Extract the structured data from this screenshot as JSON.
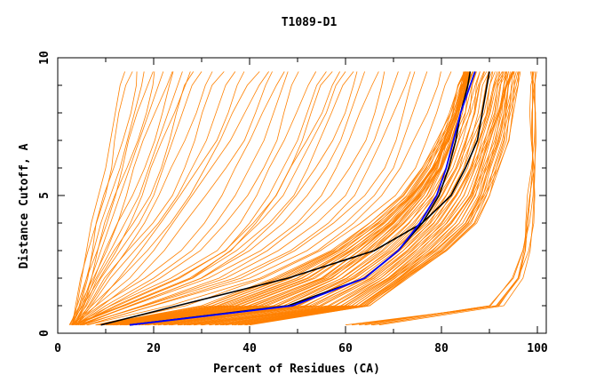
{
  "chart_data": {
    "type": "line",
    "title": "T1089-D1",
    "xlabel": "Percent of Residues (CA)",
    "ylabel": "Distance Cutoff, A",
    "xlim": [
      0,
      100
    ],
    "ylim": [
      0,
      10
    ],
    "xticks": [
      "0",
      "20",
      "40",
      "60",
      "80",
      "100"
    ],
    "yticks": [
      "0",
      "5",
      "10"
    ],
    "grid": false,
    "colors": {
      "models": "#ff8000",
      "highlight_black": "#000000",
      "highlight_blue": "#0000ff"
    },
    "y": [
      0.3,
      1,
      2,
      3,
      4,
      5,
      6,
      7,
      8,
      9,
      9.5
    ],
    "orange_series": [
      [
        3,
        4,
        5,
        6,
        7,
        8.5,
        10,
        11,
        12,
        13,
        14
      ],
      [
        3,
        4.5,
        6,
        7.5,
        9,
        11,
        13,
        14.5,
        16,
        17.5,
        18
      ],
      [
        3,
        5,
        7,
        9,
        11,
        13,
        15,
        17,
        19,
        21,
        22
      ],
      [
        3,
        5,
        8,
        11,
        14,
        17,
        19,
        21,
        23,
        25,
        26
      ],
      [
        3,
        6,
        9,
        13,
        17,
        20,
        22,
        24,
        26,
        28,
        30
      ],
      [
        4,
        7,
        11,
        16,
        21,
        25,
        28,
        31,
        33,
        35,
        37
      ],
      [
        3,
        8,
        15,
        20,
        24,
        28,
        32,
        36,
        39,
        42,
        44
      ],
      [
        4,
        10,
        20,
        28,
        33,
        37,
        40,
        43,
        45,
        47,
        48
      ],
      [
        4,
        12,
        25,
        35,
        40,
        44,
        47,
        50,
        52,
        54,
        56
      ],
      [
        3,
        14,
        28,
        36,
        42,
        47,
        50,
        53,
        56,
        58,
        60
      ],
      [
        5,
        15,
        30,
        40,
        47,
        52,
        56,
        59,
        61,
        63,
        64
      ],
      [
        5,
        18,
        35,
        46,
        54,
        60,
        63,
        66,
        68,
        70,
        71
      ],
      [
        6,
        20,
        40,
        52,
        60,
        66,
        70,
        72,
        74,
        76,
        77
      ],
      [
        8,
        30,
        45,
        57,
        65,
        72,
        76,
        79,
        82,
        84,
        85
      ],
      [
        10,
        35,
        50,
        60,
        68,
        74,
        78,
        81,
        83,
        84,
        85
      ],
      [
        12,
        40,
        55,
        63,
        70,
        75,
        79,
        81,
        83,
        85,
        86
      ],
      [
        15,
        45,
        58,
        66,
        72,
        77,
        80,
        82,
        84,
        85,
        86
      ],
      [
        20,
        50,
        62,
        70,
        76,
        80,
        83,
        85,
        87,
        88,
        89
      ],
      [
        25,
        55,
        66,
        73,
        79,
        83,
        86,
        88,
        90,
        91,
        92
      ],
      [
        30,
        60,
        69,
        76,
        82,
        86,
        88,
        90,
        92,
        93,
        94
      ],
      [
        35,
        63,
        71,
        79,
        85,
        88,
        90,
        92,
        93,
        94,
        95
      ],
      [
        40,
        65,
        73,
        81,
        87,
        90,
        92,
        94,
        95,
        96,
        96
      ],
      [
        60,
        92,
        96,
        97.5,
        98,
        98.5,
        99,
        99,
        99,
        99,
        99.2
      ],
      [
        64,
        90,
        95,
        97,
        98,
        98.5,
        99,
        99,
        99,
        99,
        99
      ],
      [
        67,
        93,
        97,
        98.5,
        99,
        99.3,
        99.5,
        99.5,
        99.5,
        99.5,
        99.5
      ]
    ],
    "black_series": [
      [
        9,
        25,
        48,
        66,
        76,
        82,
        85,
        87.5,
        88.5,
        89.5,
        90
      ],
      [
        15,
        48,
        64,
        71,
        76,
        79.5,
        81.5,
        83,
        84,
        85.5,
        86
      ]
    ],
    "blue_series": [
      [
        15,
        49,
        64,
        71,
        75.5,
        79,
        81,
        82.5,
        84,
        86,
        87
      ]
    ]
  }
}
